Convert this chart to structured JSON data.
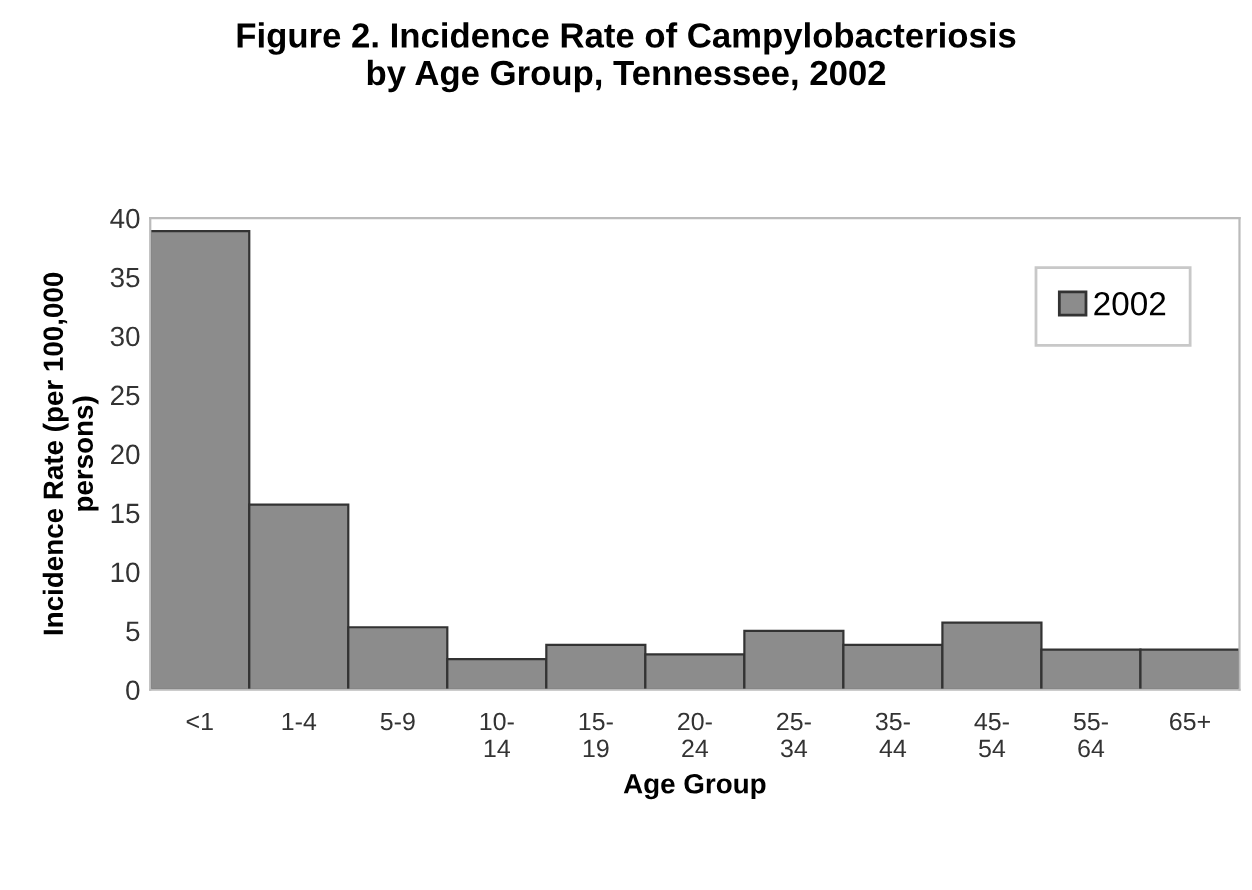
{
  "chart_data": {
    "type": "bar",
    "title": "Figure 2. Incidence Rate of Campylobacteriosis\nby Age Group, Tennessee, 2002",
    "xlabel": "Age Group",
    "ylabel": "Incidence Rate (per 100,000\npersons)",
    "categories": [
      "<1",
      "1-4",
      "5-9",
      "10-\n14",
      "15-\n19",
      "20-\n24",
      "25-\n34",
      "35-\n44",
      "45-\n54",
      "55-\n64",
      "65+"
    ],
    "series": [
      {
        "name": "2002",
        "color": "#8c8c8c",
        "values": [
          38.9,
          15.7,
          5.3,
          2.6,
          3.8,
          3.0,
          5.0,
          3.8,
          5.7,
          3.4,
          3.4
        ]
      }
    ],
    "ylim": [
      0,
      40
    ],
    "yticks": [
      0,
      5,
      10,
      15,
      20,
      25,
      30,
      35,
      40
    ],
    "grid": false,
    "legend": "top right"
  }
}
